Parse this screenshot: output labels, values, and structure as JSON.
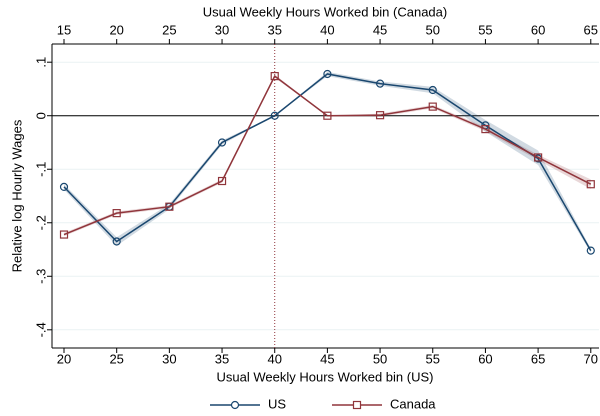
{
  "chart_data": {
    "type": "line",
    "xlabel": "Usual Weekly Hours Worked bin (US)",
    "x2label": "Usual Weekly Hours Worked bin (Canada)",
    "ylabel": "Relative log Hourly Wages",
    "x": [
      20,
      25,
      30,
      35,
      40,
      45,
      50,
      55,
      60,
      65,
      70
    ],
    "x2": [
      15,
      20,
      25,
      30,
      35,
      40,
      45,
      50,
      55,
      60,
      65
    ],
    "xlim": [
      18.86,
      70.78
    ],
    "xticks": [
      20,
      25,
      30,
      35,
      40,
      45,
      50,
      55,
      60,
      65,
      70
    ],
    "x2lim": [
      13.86,
      65.78
    ],
    "x2ticks": [
      15,
      20,
      25,
      30,
      35,
      40,
      45,
      50,
      55,
      60,
      65
    ],
    "ylim": [
      -0.434,
      0.134
    ],
    "yticks": [
      {
        "value": -0.4,
        "label": "-.4"
      },
      {
        "value": -0.3,
        "label": "-.3"
      },
      {
        "value": -0.2,
        "label": "-.2"
      },
      {
        "value": -0.1,
        "label": "-.1"
      },
      0,
      {
        "value": 0.1,
        "label": ".1"
      }
    ],
    "grid": true,
    "hline": 0,
    "vline": 40,
    "legend": "bottom",
    "series": [
      {
        "name": "US",
        "color": "#1a476f",
        "marker": "circle",
        "axis": "x",
        "values": [
          -0.133,
          -0.235,
          -0.17,
          -0.05,
          0,
          0.078,
          0.06,
          0.048,
          -0.018,
          -0.08,
          -0.252
        ],
        "ci_low": [
          -0.138,
          -0.243,
          -0.175,
          -0.054,
          0,
          0.074,
          0.056,
          0.042,
          -0.03,
          -0.092,
          -0.256
        ],
        "ci_high": [
          -0.128,
          -0.227,
          -0.165,
          -0.046,
          0,
          0.082,
          0.064,
          0.054,
          -0.008,
          -0.065,
          -0.248
        ]
      },
      {
        "name": "Canada",
        "color": "#90353b",
        "marker": "square",
        "axis": "x2",
        "values": [
          -0.222,
          -0.182,
          -0.17,
          -0.122,
          0.074,
          0,
          0.001,
          0.017,
          -0.025,
          -0.078,
          -0.128
        ],
        "ci_low": [
          -0.225,
          -0.185,
          -0.173,
          -0.125,
          0.071,
          0,
          -0.002,
          0.014,
          -0.029,
          -0.083,
          -0.137
        ],
        "ci_high": [
          -0.219,
          -0.179,
          -0.167,
          -0.119,
          0.077,
          0,
          0.004,
          0.02,
          -0.021,
          -0.073,
          -0.119
        ]
      }
    ]
  }
}
